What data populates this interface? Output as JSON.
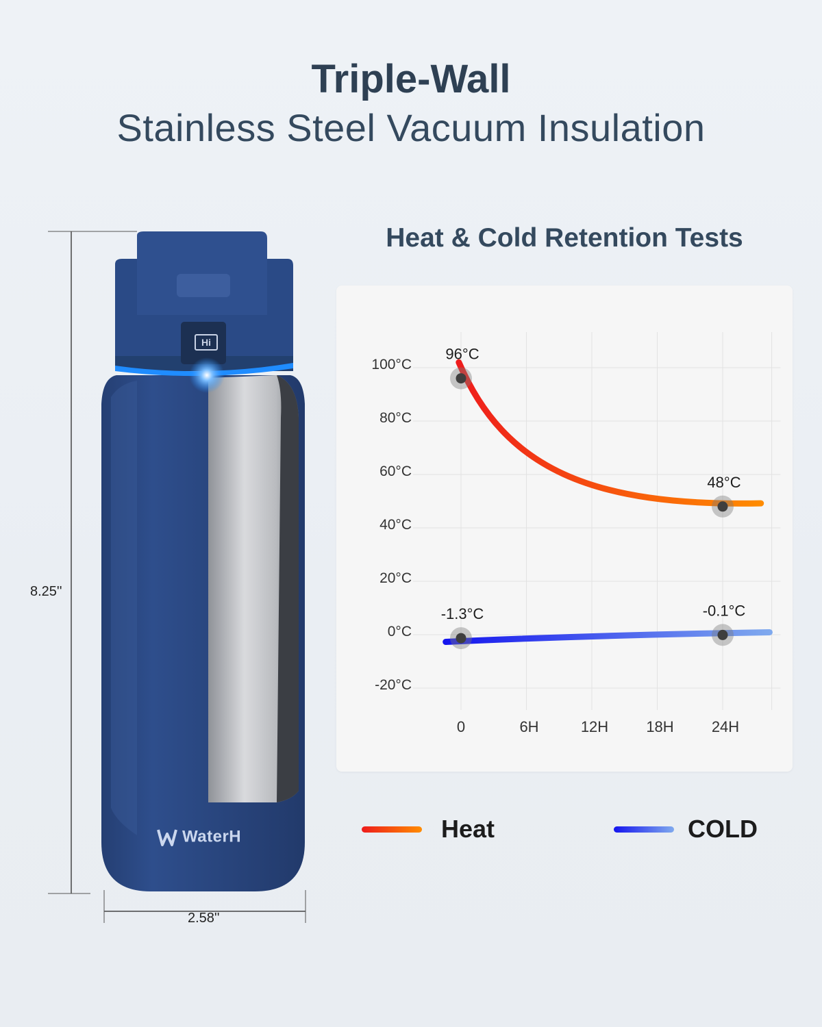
{
  "header": {
    "title": "Triple-Wall",
    "subtitle": "Stainless Steel Vacuum Insulation"
  },
  "product": {
    "brand": "WaterH",
    "lid_badge": "Hi",
    "height_label": "8.25''",
    "width_label": "2.58''",
    "body_color": "#2b4a86",
    "accent_ring_color": "#1f8cff"
  },
  "chart_data": {
    "type": "line",
    "title": "Heat & Cold Retention Tests",
    "x_labels": [
      "0",
      "6H",
      "12H",
      "18H",
      "24H"
    ],
    "x": [
      0,
      6,
      12,
      18,
      24
    ],
    "y_tick_labels": [
      "100°C",
      "80°C",
      "60°C",
      "40°C",
      "20°C",
      "0°C",
      "-20°C"
    ],
    "y_ticks": [
      100,
      80,
      60,
      40,
      20,
      0,
      -20
    ],
    "ylim": [
      -20,
      100
    ],
    "grid": true,
    "legend_position": "bottom",
    "series": [
      {
        "name": "Heat",
        "color_start": "#ee1c1c",
        "color_end": "#ff8c00",
        "points": [
          {
            "x": 0,
            "y": 96,
            "label": "96°C"
          },
          {
            "x": 24,
            "y": 48,
            "label": "48°C"
          }
        ]
      },
      {
        "name": "COLD",
        "color_start": "#1515ee",
        "color_end": "#7fa9ee",
        "points": [
          {
            "x": 0,
            "y": -1.3,
            "label": "-1.3°C"
          },
          {
            "x": 24,
            "y": -0.1,
            "label": "-0.1°C"
          }
        ]
      }
    ]
  }
}
